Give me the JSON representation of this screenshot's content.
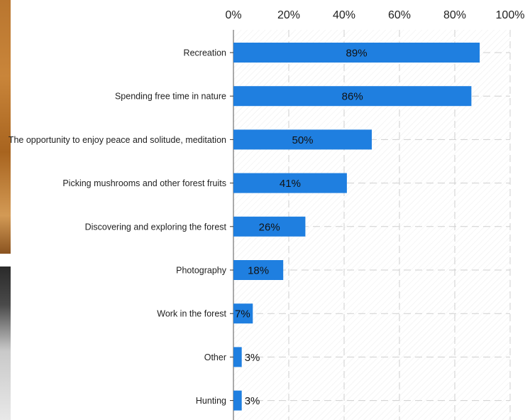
{
  "chart_data": {
    "type": "bar",
    "orientation": "horizontal",
    "categories": [
      "Recreation",
      "Spending free time in nature",
      "The opportunity to enjoy peace and solitude, meditation",
      "Picking mushrooms and other forest fruits",
      "Discovering and exploring the forest",
      "Photography",
      "Work in the forest",
      "Other",
      "Hunting"
    ],
    "values": [
      89,
      86,
      50,
      41,
      26,
      18,
      7,
      3,
      3
    ],
    "value_labels": [
      "89%",
      "86%",
      "50%",
      "41%",
      "26%",
      "18%",
      "7%",
      "3%",
      "3%"
    ],
    "xlim": [
      0,
      100
    ],
    "x_ticks": [
      0,
      20,
      40,
      60,
      80,
      100
    ],
    "x_tick_labels": [
      "0%",
      "20%",
      "40%",
      "60%",
      "80%",
      "100%"
    ],
    "x_axis_position": "top",
    "grid": true,
    "bar_color": "#1f7fe0",
    "grid_color": "#cfcfcf"
  }
}
